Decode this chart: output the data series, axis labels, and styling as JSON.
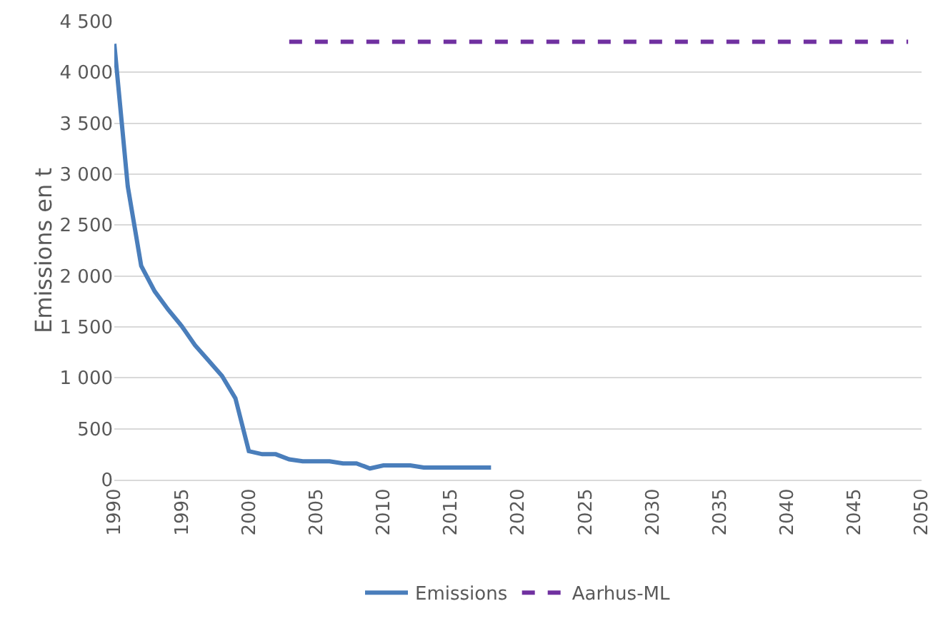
{
  "chart_data": {
    "type": "line",
    "ylabel": "Emissions en t",
    "xlim": [
      1990,
      2050
    ],
    "xticks": [
      1990,
      1995,
      2000,
      2005,
      2010,
      2015,
      2020,
      2025,
      2030,
      2035,
      2040,
      2045,
      2050
    ],
    "ylim": [
      0,
      4500
    ],
    "yticks": [
      0,
      {
        "value": 500,
        "label": "500"
      },
      {
        "value": 1000,
        "label": "1 000"
      },
      {
        "value": 1500,
        "label": "1 500"
      },
      {
        "value": 2000,
        "label": "2 000"
      },
      {
        "value": 2500,
        "label": "2 500"
      },
      {
        "value": 3000,
        "label": "3 000"
      },
      {
        "value": 3500,
        "label": "3 500"
      },
      {
        "value": 4000,
        "label": "4 000"
      },
      {
        "value": 4500,
        "label": "4 500"
      }
    ],
    "grid": "y",
    "legend": "bottom",
    "marker": "none",
    "series": [
      {
        "name": "Emissions",
        "color": "#4a7ebb",
        "line_style": "solid",
        "x": [
          1990,
          1991,
          1992,
          1993,
          1994,
          1995,
          1996,
          1997,
          1998,
          1999,
          2000,
          2001,
          2002,
          2003,
          2004,
          2005,
          2006,
          2007,
          2008,
          2009,
          2010,
          2011,
          2012,
          2013,
          2014,
          2015,
          2016,
          2017,
          2018
        ],
        "values": [
          4280,
          2880,
          2100,
          1850,
          1670,
          1510,
          1320,
          1170,
          1020,
          800,
          280,
          250,
          250,
          200,
          180,
          180,
          180,
          160,
          160,
          110,
          140,
          140,
          140,
          120,
          120,
          120,
          120,
          120,
          120
        ]
      },
      {
        "name": "Aarhus-ML",
        "color": "#7030a0",
        "line_style": "dashed",
        "x": [
          2003,
          2049
        ],
        "values": [
          4300,
          4300
        ]
      }
    ]
  }
}
